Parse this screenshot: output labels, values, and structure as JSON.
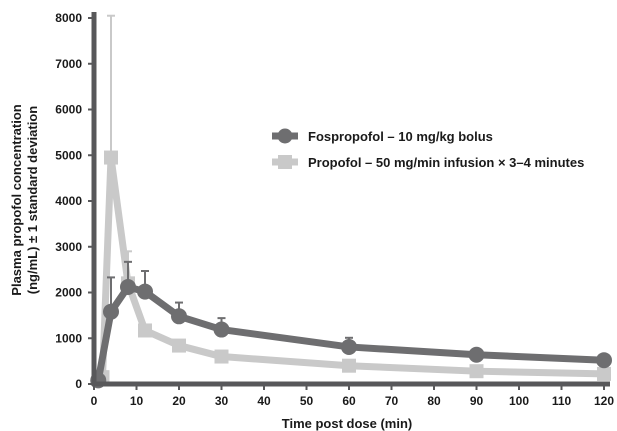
{
  "chart_data": {
    "type": "line",
    "xlabel": "Time post dose (min)",
    "ylabel_line1": "Plasma propofol concentration",
    "ylabel_line2": "(ng/mL) ± 1 standard deviation",
    "xlim": [
      0,
      120
    ],
    "ylim": [
      0,
      8000
    ],
    "x_ticks": [
      "0",
      "10",
      "20",
      "30",
      "40",
      "50",
      "60",
      "70",
      "80",
      "90",
      "100",
      "110",
      "120"
    ],
    "y_ticks": [
      "0",
      "1000",
      "2000",
      "3000",
      "4000",
      "5000",
      "6000",
      "7000",
      "8000"
    ],
    "legend_position": "center-right",
    "grid": false,
    "series": [
      {
        "name": "Fospropofol – 10 mg/kg bolus",
        "color": "#6e6e70",
        "marker": "circle",
        "x": [
          1,
          4,
          8,
          12,
          20,
          30,
          60,
          90,
          120
        ],
        "y": [
          80,
          1580,
          2120,
          2020,
          1480,
          1190,
          810,
          640,
          520
        ],
        "sd": [
          0,
          750,
          550,
          450,
          300,
          250,
          200,
          0,
          0
        ]
      },
      {
        "name": "Propofol – 50 mg/min infusion × 3–4 minutes",
        "color": "#c9c9c9",
        "marker": "square",
        "x": [
          2,
          4,
          8,
          12,
          20,
          30,
          60,
          90,
          120
        ],
        "y": [
          150,
          4950,
          2200,
          1170,
          840,
          600,
          400,
          280,
          220
        ],
        "sd": [
          0,
          3100,
          700,
          0,
          0,
          0,
          0,
          0,
          0
        ]
      }
    ]
  }
}
